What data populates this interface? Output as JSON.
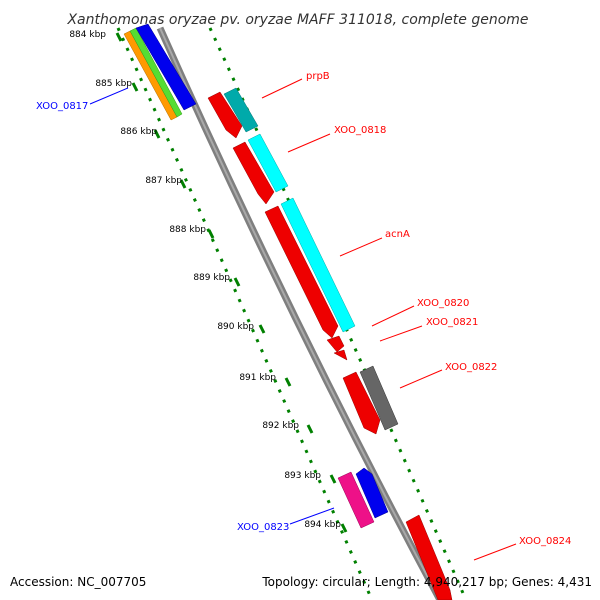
{
  "title": "Xanthomonas oryzae pv. oryzae MAFF 311018, complete genome",
  "footer": {
    "accession": "Accession: NC_007705",
    "summary": "Topology: circular; Length: 4,940,217 bp; Genes: 4,431"
  },
  "colors": {
    "forward_label": "#ff0000",
    "reverse_label": "#0000ff",
    "tick_marks": "#008000",
    "backbone": "#808080"
  },
  "kbp_ticks": [
    "884 kbp",
    "885 kbp",
    "886 kbp",
    "887 kbp",
    "888 kbp",
    "889 kbp",
    "890 kbp",
    "891 kbp",
    "892 kbp",
    "893 kbp",
    "894 kbp"
  ],
  "gene_labels": [
    {
      "name": "prpB",
      "strand": "forward"
    },
    {
      "name": "XOO_0818",
      "strand": "forward"
    },
    {
      "name": "acnA",
      "strand": "forward"
    },
    {
      "name": "XOO_0820",
      "strand": "forward"
    },
    {
      "name": "XOO_0821",
      "strand": "forward"
    },
    {
      "name": "XOO_0822",
      "strand": "forward"
    },
    {
      "name": "XOO_0824",
      "strand": "forward"
    },
    {
      "name": "XOO_0817",
      "strand": "reverse"
    },
    {
      "name": "XOO_0823",
      "strand": "reverse"
    }
  ]
}
